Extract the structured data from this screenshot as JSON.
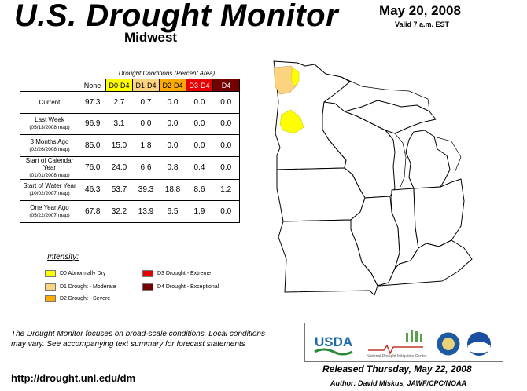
{
  "header": {
    "title": "U.S. Drought Monitor",
    "region": "Midwest",
    "date": "May 20, 2008",
    "valid": "Valid 7 a.m. EST"
  },
  "table": {
    "caption": "Drought Conditions (Percent Area)",
    "columns": [
      "None",
      "D0-D4",
      "D1-D4",
      "D2-D4",
      "D3-D4",
      "D4"
    ],
    "rows": [
      {
        "label": "Current",
        "sub": "",
        "values": [
          "97.3",
          "2.7",
          "0.7",
          "0.0",
          "0.0",
          "0.0"
        ]
      },
      {
        "label": "Last Week",
        "sub": "(05/13/2008 map)",
        "values": [
          "96.9",
          "3.1",
          "0.0",
          "0.0",
          "0.0",
          "0.0"
        ]
      },
      {
        "label": "3 Months Ago",
        "sub": "(02/26/2008 map)",
        "values": [
          "85.0",
          "15.0",
          "1.8",
          "0.0",
          "0.0",
          "0.0"
        ]
      },
      {
        "label": "Start of Calendar Year",
        "sub": "(01/01/2008 map)",
        "values": [
          "76.0",
          "24.0",
          "6.6",
          "0.8",
          "0.4",
          "0.0"
        ]
      },
      {
        "label": "Start of Water Year",
        "sub": "(10/02/2007 map)",
        "values": [
          "46.3",
          "53.7",
          "39.3",
          "18.8",
          "8.6",
          "1.2"
        ]
      },
      {
        "label": "One Year Ago",
        "sub": "(05/22/2007 map)",
        "values": [
          "67.8",
          "32.2",
          "13.9",
          "6.5",
          "1.9",
          "0.0"
        ]
      }
    ]
  },
  "legend": {
    "title": "Intensity:",
    "items": [
      {
        "label": "D0 Abnormally Dry",
        "color": "#ffff00"
      },
      {
        "label": "D1 Drought - Moderate",
        "color": "#fcd37f"
      },
      {
        "label": "D2 Drought - Severe",
        "color": "#ffaa00"
      },
      {
        "label": "D3 Drought - Extreme",
        "color": "#e60000"
      },
      {
        "label": "D4 Drought - Exceptional",
        "color": "#730000"
      }
    ]
  },
  "footnote": "The Drought Monitor focuses on broad-scale conditions. Local conditions may vary. See accompanying text summary for forecast statements",
  "url": "http://drought.unl.edu/dm",
  "released": "Released Thursday, May 22, 2008",
  "author": "Author: David Miskus, JAWF/CPC/NOAA",
  "logos": {
    "usda": "USDA",
    "ndmc": "National Drought Mitigation Center"
  },
  "map": {
    "drought_areas": [
      {
        "category": "D1",
        "location": "northwestern Minnesota",
        "color": "#fcd37f"
      },
      {
        "category": "D0",
        "location": "northwestern Minnesota",
        "color": "#ffff00"
      },
      {
        "category": "D0",
        "location": "west-central Minnesota",
        "color": "#ffff00"
      }
    ]
  }
}
